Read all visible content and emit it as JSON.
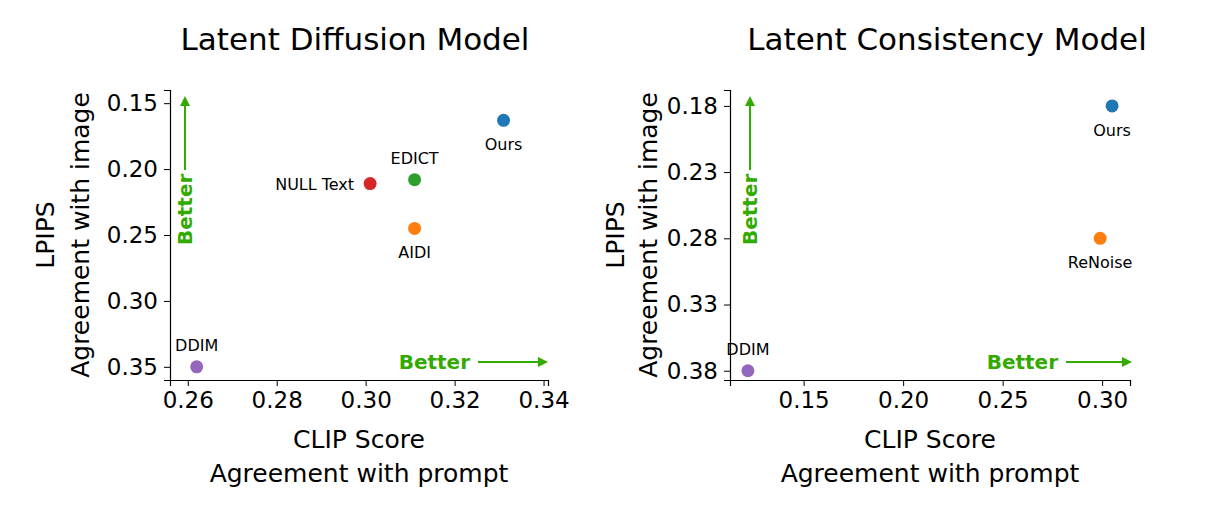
{
  "chart_data": [
    {
      "type": "scatter",
      "title": "Latent Diffusion Model",
      "xlabel": [
        "CLIP Score",
        "Agreement with prompt"
      ],
      "ylabel": [
        "LPIPS",
        "Agreement with image"
      ],
      "labels": [
        "Ours",
        "EDICT",
        "NULL Text",
        "AIDI",
        "DDIM"
      ],
      "x": [
        0.331,
        0.311,
        0.301,
        0.311,
        0.262
      ],
      "values": [
        0.163,
        0.208,
        0.211,
        0.245,
        0.35
      ],
      "colors": [
        "#1f77b4",
        "#2ca02c",
        "#d62728",
        "#ff7f0e",
        "#9467bd"
      ],
      "xlim": [
        0.256,
        0.341
      ],
      "xticks": [
        0.26,
        0.28,
        {
          "value": 0.3,
          "label": "0.30"
        },
        0.32,
        0.34
      ],
      "ylim": [
        0.36,
        0.14
      ],
      "yticks": [
        0.15,
        {
          "value": 0.2,
          "label": "0.20"
        },
        0.25,
        {
          "value": 0.3,
          "label": "0.30"
        },
        0.35
      ],
      "annotations": [
        "Better",
        "Better"
      ]
    },
    {
      "type": "scatter",
      "title": "Latent Consistency Model",
      "xlabel": [
        "CLIP Score",
        "Agreement with prompt"
      ],
      "ylabel": [
        "LPIPS",
        "Agreement with image"
      ],
      "labels": [
        "Ours",
        "ReNoise",
        "DDIM"
      ],
      "x": [
        0.305,
        0.299,
        0.122
      ],
      "values": [
        0.18,
        0.28,
        0.38
      ],
      "colors": [
        "#1f77b4",
        "#ff7f0e",
        "#9467bd"
      ],
      "xlim": [
        0.113,
        0.314
      ],
      "xticks": [
        0.15,
        {
          "value": 0.2,
          "label": "0.20"
        },
        0.25,
        {
          "value": 0.3,
          "label": "0.30"
        }
      ],
      "ylim": [
        0.387,
        0.168
      ],
      "yticks": [
        0.18,
        0.23,
        0.28,
        0.33,
        0.38
      ],
      "annotations": [
        "Better",
        "Better"
      ]
    }
  ]
}
